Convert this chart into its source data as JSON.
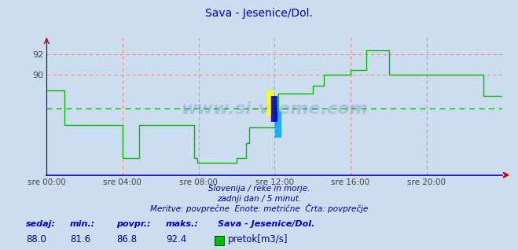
{
  "title": "Sava - Jesenice/Dol.",
  "bg_color": "#ccddef",
  "plot_bg_color": "#ccddef",
  "line_color": "#00bb00",
  "grid_color": "#ff8888",
  "avg_line_color": "#00bb00",
  "avg_value": 86.8,
  "x_labels": [
    "sre 00:00",
    "sre 04:00",
    "sre 08:00",
    "sre 12:00",
    "sre 16:00",
    "sre 20:00"
  ],
  "x_ticks_hours": [
    0,
    4,
    8,
    12,
    16,
    20
  ],
  "ylim_min": 80.4,
  "ylim_max": 93.6,
  "yticks": [
    90,
    92
  ],
  "footer_line1": "Slovenija / reke in morje.",
  "footer_line2": "zadnji dan / 5 minut.",
  "footer_line3": "Meritve: povprečne  Enote: metrične  Črta: povprečje",
  "stat_label_color": "#0000cc",
  "stat_value_color": "#000099",
  "sedaj": 88.0,
  "min_val": 81.6,
  "povpr": 86.8,
  "maks": 92.4,
  "series_name": "Sava - Jesenice/Dol.",
  "legend_label": "pretok[m3/s]",
  "time_points": [
    0,
    55,
    56,
    240,
    241,
    290,
    291,
    465,
    466,
    475,
    476,
    600,
    601,
    630,
    631,
    640,
    641,
    720,
    721,
    730,
    731,
    840,
    841,
    875,
    876,
    960,
    961,
    1010,
    1011,
    1020,
    1021,
    1050,
    1051,
    1080,
    1081,
    1110,
    1111,
    1200,
    1201,
    1320,
    1321,
    1380,
    1381,
    1395,
    1396,
    1440
  ],
  "flow_values": [
    88.5,
    88.5,
    85.2,
    85.2,
    82.0,
    82.0,
    85.2,
    85.2,
    82.0,
    82.0,
    81.6,
    81.6,
    82.0,
    82.0,
    83.5,
    83.5,
    85.0,
    85.0,
    86.5,
    86.5,
    88.2,
    88.2,
    89.0,
    89.0,
    90.0,
    90.0,
    90.5,
    90.5,
    92.4,
    92.4,
    92.4,
    92.4,
    92.4,
    92.4,
    90.0,
    90.0,
    90.0,
    90.0,
    90.0,
    90.0,
    90.0,
    90.0,
    88.0,
    88.0,
    88.0,
    88.0
  ],
  "watermark": "www.si-vreme.com"
}
